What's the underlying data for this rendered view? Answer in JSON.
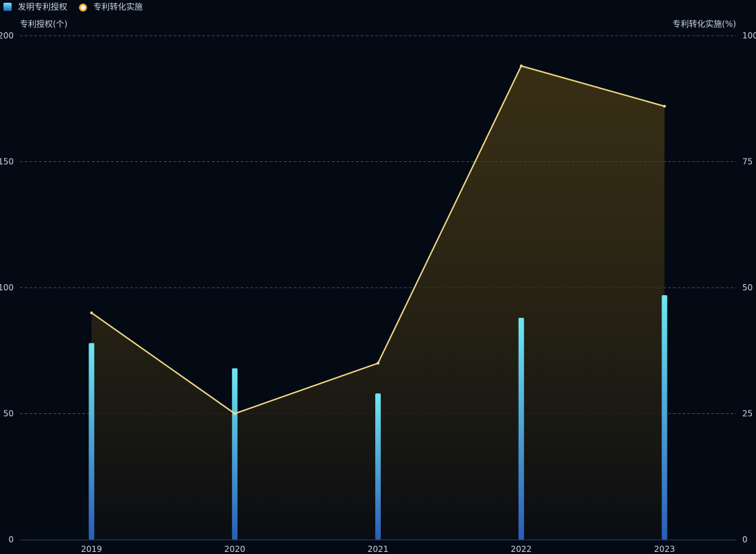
{
  "chart_data": {
    "type": "bar+line",
    "categories": [
      "2019",
      "2020",
      "2021",
      "2022",
      "2023"
    ],
    "series": [
      {
        "name": "发明专利授权",
        "type": "bar",
        "axis": "left",
        "values": [
          78,
          68,
          58,
          88,
          97
        ]
      },
      {
        "name": "专利转化实施",
        "type": "line",
        "axis": "right",
        "area": true,
        "values": [
          45,
          25,
          35,
          94,
          86
        ]
      }
    ],
    "y_left": {
      "name": "专利授权(个)",
      "min": 0,
      "max": 200,
      "ticks": [
        "0",
        "50",
        "100",
        "150",
        "200"
      ]
    },
    "y_right": {
      "name": "专利转化实施(%)",
      "min": 0,
      "max": 100,
      "ticks": [
        "0",
        "25",
        "50",
        "75",
        "100"
      ]
    },
    "grid": true,
    "legend_position": "top-left",
    "colors": {
      "background": "#030a13",
      "bar_top": "#6ee8f2",
      "bar_bottom": "#2a5db8",
      "line": "#f5dc8a",
      "area_top": "#5a4615",
      "area_bottom": "#0a0d12",
      "grid": "#3b4f7e",
      "axis": "#2e3f6e",
      "text": "#c8d3e8",
      "legend_marker_fill": "#ffffff",
      "legend_marker_stroke": "#f2a93b"
    }
  }
}
